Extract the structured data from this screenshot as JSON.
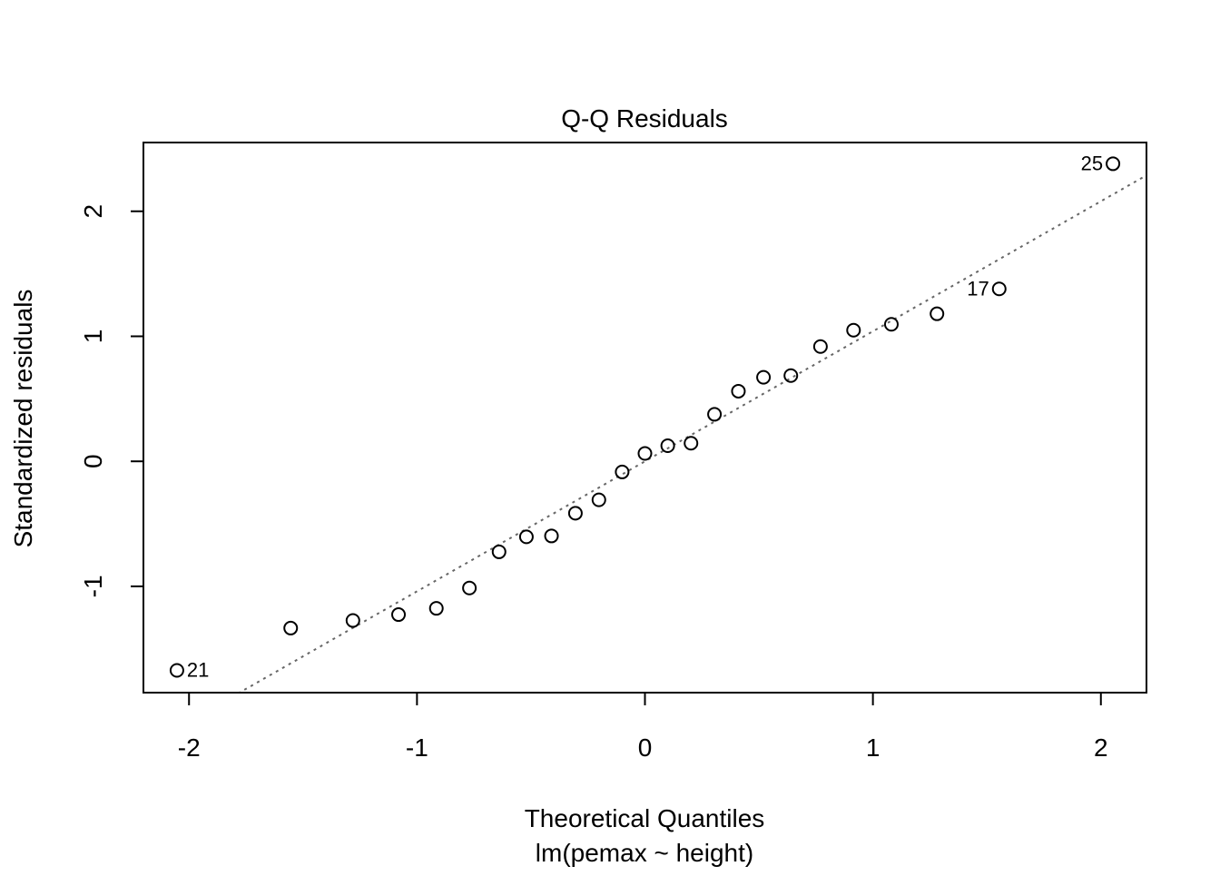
{
  "chart_data": {
    "type": "scatter",
    "title": "Q-Q Residuals",
    "xlabel": "Theoretical Quantiles",
    "ylabel": "Standardized residuals",
    "subtitle": "lm(pemax ~ height)",
    "xlim": [
      -2.2,
      2.2
    ],
    "ylim": [
      -1.85,
      2.55
    ],
    "x_ticks": [
      -2,
      -1,
      0,
      1,
      2
    ],
    "y_ticks": [
      -1,
      0,
      1,
      2
    ],
    "grid": false,
    "points": [
      {
        "x": -2.053,
        "y": -1.672,
        "label": "21"
      },
      {
        "x": -1.554,
        "y": -1.334
      },
      {
        "x": -1.281,
        "y": -1.273
      },
      {
        "x": -1.081,
        "y": -1.226
      },
      {
        "x": -0.915,
        "y": -1.176
      },
      {
        "x": -0.77,
        "y": -1.013
      },
      {
        "x": -0.64,
        "y": -0.724
      },
      {
        "x": -0.52,
        "y": -0.604
      },
      {
        "x": -0.41,
        "y": -0.597
      },
      {
        "x": -0.305,
        "y": -0.415
      },
      {
        "x": -0.202,
        "y": -0.308
      },
      {
        "x": -0.1,
        "y": -0.085
      },
      {
        "x": 0.0,
        "y": 0.063
      },
      {
        "x": 0.1,
        "y": 0.125
      },
      {
        "x": 0.202,
        "y": 0.145
      },
      {
        "x": 0.305,
        "y": 0.376
      },
      {
        "x": 0.41,
        "y": 0.561
      },
      {
        "x": 0.52,
        "y": 0.672
      },
      {
        "x": 0.64,
        "y": 0.686
      },
      {
        "x": 0.77,
        "y": 0.918
      },
      {
        "x": 0.915,
        "y": 1.049
      },
      {
        "x": 1.081,
        "y": 1.096
      },
      {
        "x": 1.281,
        "y": 1.18
      },
      {
        "x": 1.554,
        "y": 1.379,
        "label": "17"
      },
      {
        "x": 2.053,
        "y": 2.38,
        "label": "25"
      }
    ],
    "reference_line": {
      "intercept": 0.0,
      "slope": 1.04,
      "style": "dotted",
      "color": "#666666"
    }
  }
}
